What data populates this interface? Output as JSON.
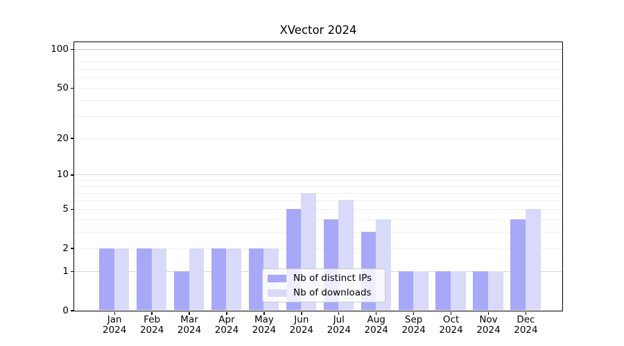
{
  "title": "XVector 2024",
  "chart_data": {
    "type": "bar",
    "title": "XVector 2024",
    "yscale": "log1p",
    "ylim": [
      0,
      113.5
    ],
    "y_ticks": [
      100,
      50,
      20,
      10,
      5,
      2,
      1,
      0
    ],
    "grid_values": [
      1,
      2,
      3,
      4,
      5,
      6,
      7,
      8,
      9,
      10,
      20,
      30,
      40,
      50,
      60,
      70,
      80,
      90,
      100
    ],
    "categories": [
      "Jan",
      "Feb",
      "Mar",
      "Apr",
      "May",
      "Jun",
      "Jul",
      "Aug",
      "Sep",
      "Oct",
      "Nov",
      "Dec"
    ],
    "year": "2024",
    "series": [
      {
        "name": "Nb of distinct IPs",
        "color": "#a8a8f8",
        "values": [
          2,
          2,
          1,
          2,
          2,
          5,
          4,
          3,
          1,
          1,
          1,
          4
        ]
      },
      {
        "name": "Nb of downloads",
        "color": "#d9d9f9",
        "values": [
          2,
          2,
          2,
          2,
          2,
          7,
          6,
          4,
          1,
          1,
          1,
          5
        ]
      }
    ],
    "legend": {
      "position": "lower center",
      "entries": [
        "Nb of distinct IPs",
        "Nb of downloads"
      ]
    },
    "grid_color_minor": "#efefef",
    "grid_color_major": "#d6d6d6",
    "grid_color_top": "#c8c8c8"
  }
}
